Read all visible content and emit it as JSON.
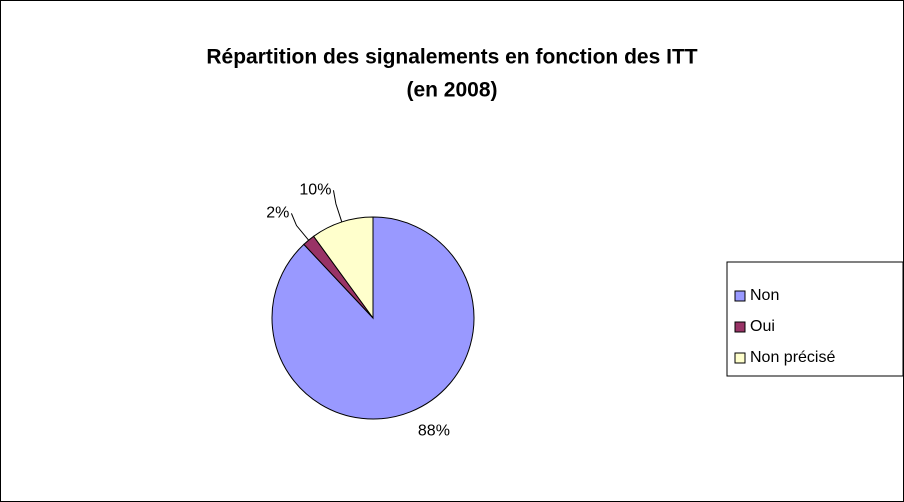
{
  "chart_data": {
    "type": "pie",
    "title": [
      "Répartition des signalements en fonction des ITT",
      "(en 2008)"
    ],
    "categories": [
      "Non",
      "Oui",
      "Non précisé"
    ],
    "values": [
      88,
      2,
      10
    ],
    "value_labels": [
      "88%",
      "2%",
      "10%"
    ],
    "colors": [
      "#9999ff",
      "#993366",
      "#ffffcc"
    ],
    "legend": "right"
  }
}
